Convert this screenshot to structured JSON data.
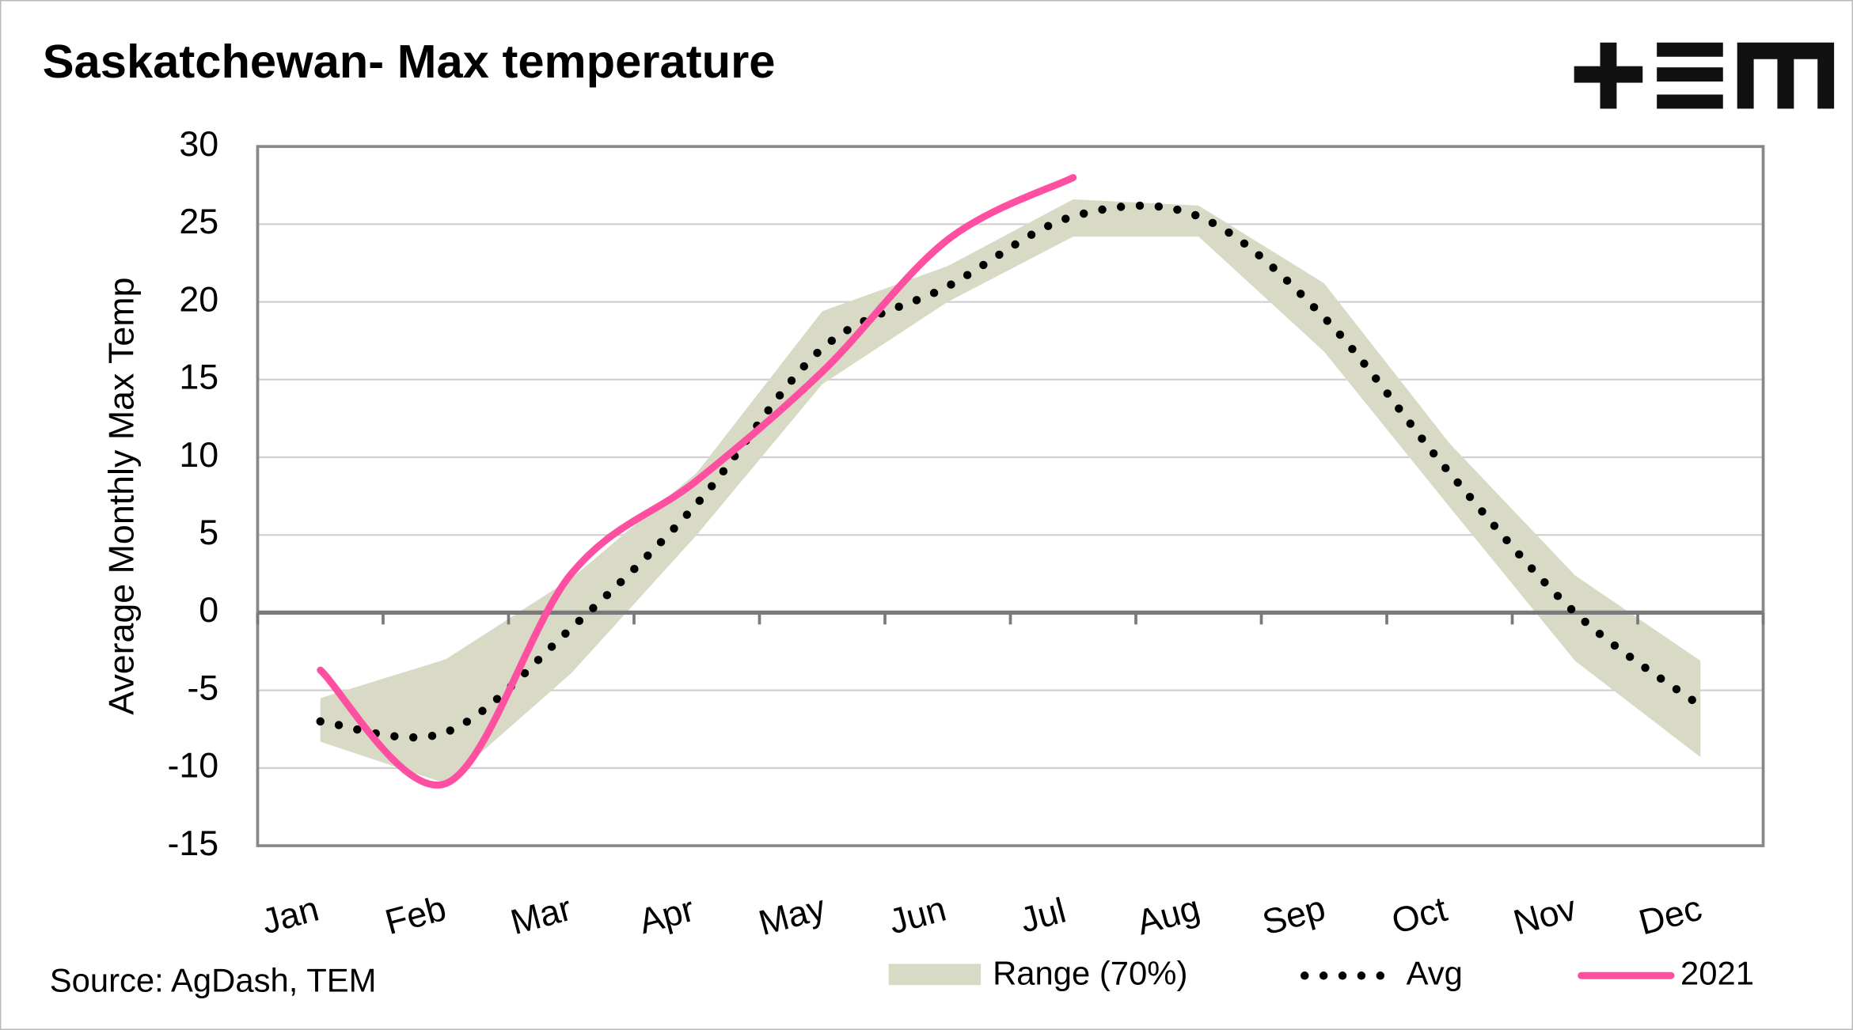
{
  "chart_data": {
    "type": "line",
    "title": "Saskatchewan- Max temperature",
    "ylabel": "Average Monthly Max Temp",
    "source": "Source: AgDash, TEM",
    "categories": [
      "Jan",
      "Feb",
      "Mar",
      "Apr",
      "May",
      "Jun",
      "Jul",
      "Aug",
      "Sep",
      "Oct",
      "Nov",
      "Dec"
    ],
    "series": [
      {
        "name": "Range (70%)",
        "color": "#d9dac6",
        "upper": [
          -5.5,
          -3,
          2.2,
          9,
          19.4,
          22.3,
          26.6,
          26.2,
          21.2,
          10.9,
          2.4,
          -3.1
        ],
        "lower": [
          -8.3,
          -11,
          -3.9,
          5,
          14.7,
          20,
          24.2,
          24.2,
          16.8,
          6.8,
          -3.1,
          -9.3
        ]
      },
      {
        "name": "Avg",
        "color": "#000000",
        "values": [
          -7,
          -7.7,
          -1,
          7,
          17,
          21,
          25.5,
          25.5,
          19,
          9,
          0,
          -6
        ]
      },
      {
        "name": "2021",
        "color": "#ff4fa0",
        "values": [
          -3.7,
          -11,
          2.5,
          8.5,
          15.5,
          24,
          28,
          null,
          null,
          null,
          null,
          null
        ]
      }
    ],
    "ylim": [
      -15,
      30
    ],
    "yticks": [
      -15,
      -10,
      -5,
      0,
      5,
      10,
      15,
      20,
      25,
      30
    ],
    "grid": true,
    "legend": "bottom"
  }
}
